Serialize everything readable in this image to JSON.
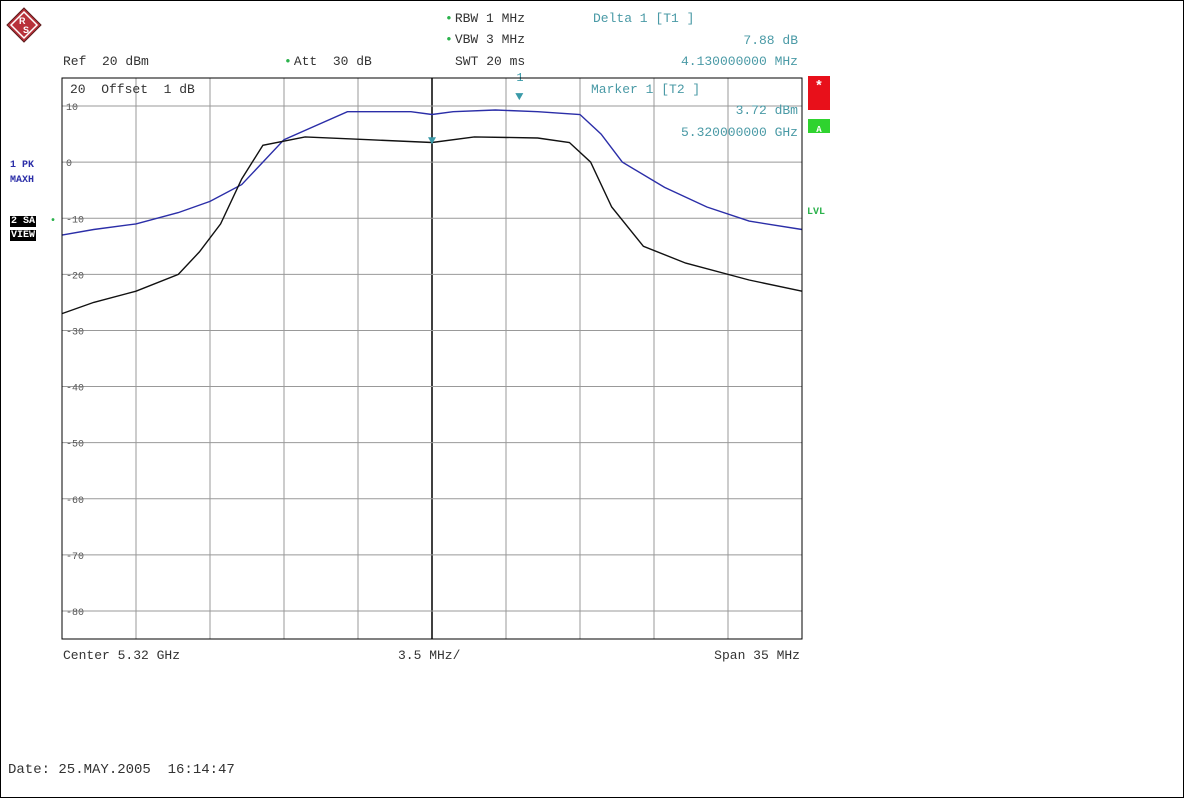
{
  "header": {
    "ref": "Ref  20 dBm",
    "att": "Att  30 dB",
    "rbw": "RBW 1 MHz",
    "vbw": "VBW 3 MHz",
    "swt": "SWT 20 ms",
    "delta_title": "Delta 1 [T1 ]",
    "delta_value": "7.88 dB",
    "delta_freq": "4.130000000 MHz",
    "marker_title": "Marker 1 [T2 ]",
    "marker_value": "3.72 dBm",
    "marker_freq": "5.320000000 GHz",
    "offset": "20  Offset  1 dB"
  },
  "side_labels": {
    "trace1": "1 PK",
    "trace1_mode": "MAXH",
    "trace2": "2 SA",
    "trace2_mode": "VIEW",
    "lvl": "LVL",
    "star": "*",
    "a_badge": "A"
  },
  "footer": {
    "center": "Center 5.32 GHz",
    "div": "3.5 MHz/",
    "span": "Span 35 MHz",
    "date": "Date: 25.MAY.2005  16:14:47"
  },
  "colors": {
    "trace1": "#2b2ea8",
    "trace2": "#111111",
    "marker": "#3a9aa8",
    "red_badge": "#e8101a",
    "green_badge": "#2fd32f"
  },
  "chart_data": {
    "type": "line",
    "title": "",
    "xlabel": "",
    "ylabel": "",
    "xlim": [
      5.3025,
      5.3375
    ],
    "ylim": [
      -85,
      15
    ],
    "y_ticks": [
      10,
      0,
      -10,
      -20,
      -30,
      -40,
      -50,
      -60,
      -70,
      -80
    ],
    "y_tick_labels": [
      "10",
      "0",
      "-10",
      "-20",
      "-30",
      "-40",
      "-50",
      "-60",
      "-70",
      "-80"
    ],
    "x_unit": "GHz",
    "y_unit": "dBm",
    "grid": true,
    "series": [
      {
        "trace": "1 PK MAXH",
        "x": [
          5.3025,
          5.304,
          5.306,
          5.308,
          5.3095,
          5.311,
          5.313,
          5.316,
          5.319,
          5.32,
          5.321,
          5.323,
          5.325,
          5.327,
          5.328,
          5.329,
          5.331,
          5.333,
          5.335,
          5.3375
        ],
        "y": [
          -13,
          -12,
          -11,
          -9,
          -7,
          -4,
          4,
          9,
          9,
          8.5,
          9,
          9.3,
          9,
          8.5,
          5,
          0,
          -4.5,
          -8,
          -10.5,
          -12
        ]
      },
      {
        "trace": "2 SA VIEW",
        "x": [
          5.3025,
          5.304,
          5.306,
          5.308,
          5.309,
          5.31,
          5.311,
          5.312,
          5.314,
          5.317,
          5.32,
          5.322,
          5.325,
          5.3265,
          5.3275,
          5.3285,
          5.33,
          5.332,
          5.335,
          5.3375
        ],
        "y": [
          -27,
          -25,
          -23,
          -20,
          -16,
          -11,
          -3,
          3,
          4.5,
          4,
          3.5,
          4.5,
          4.3,
          3.5,
          0,
          -8,
          -15,
          -18,
          -21,
          -23
        ]
      }
    ],
    "markers": [
      {
        "label": "1",
        "x": 5.32413,
        "y": 11.6
      },
      {
        "label": "",
        "x": 5.32,
        "y": 3.72
      }
    ]
  }
}
